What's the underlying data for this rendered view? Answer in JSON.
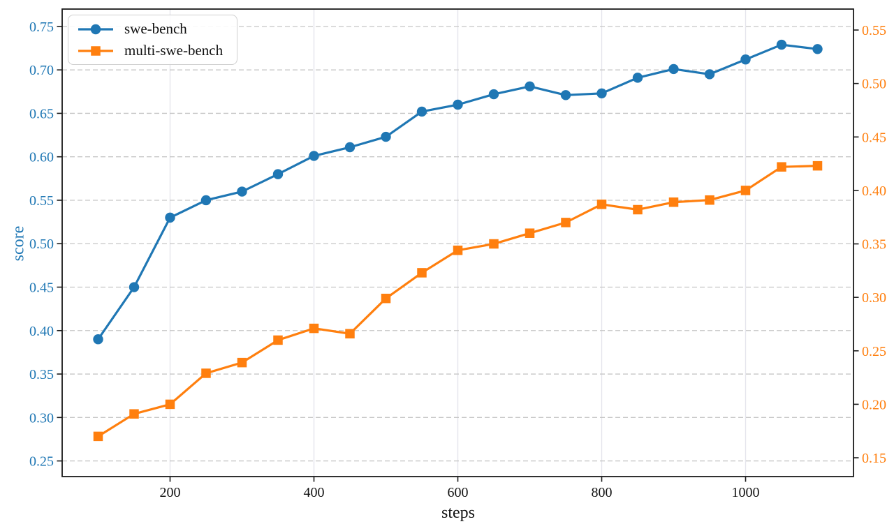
{
  "chart_data": {
    "type": "line",
    "title": "",
    "xlabel": "steps",
    "ylabel": "score",
    "x": [
      100,
      150,
      200,
      250,
      300,
      350,
      400,
      450,
      500,
      550,
      600,
      650,
      700,
      750,
      800,
      850,
      900,
      950,
      1000,
      1050,
      1100
    ],
    "series": [
      {
        "name": "swe-bench",
        "axis": "left",
        "color": "#1f77b4",
        "marker": "circle",
        "values": [
          0.39,
          0.45,
          0.53,
          0.55,
          0.56,
          0.58,
          0.601,
          0.611,
          0.623,
          0.652,
          0.66,
          0.672,
          0.681,
          0.671,
          0.673,
          0.691,
          0.701,
          0.695,
          0.712,
          0.729,
          0.724
        ]
      },
      {
        "name": "multi-swe-bench",
        "axis": "right",
        "color": "#ff7f0e",
        "marker": "square",
        "values": [
          0.17,
          0.191,
          0.2,
          0.229,
          0.239,
          0.26,
          0.271,
          0.266,
          0.299,
          0.323,
          0.344,
          0.35,
          0.36,
          0.37,
          0.387,
          0.382,
          0.389,
          0.391,
          0.4,
          0.422,
          0.423
        ]
      }
    ],
    "axes": {
      "x": {
        "range": [
          50,
          1150
        ],
        "tick_values": [
          200,
          400,
          600,
          800,
          1000
        ],
        "tick_labels": [
          "200",
          "400",
          "600",
          "800",
          "1000"
        ],
        "label_color": "#111111"
      },
      "left": {
        "range": [
          0.232,
          0.77
        ],
        "tick_values": [
          0.25,
          0.3,
          0.35,
          0.4,
          0.45,
          0.5,
          0.55,
          0.6,
          0.65,
          0.7,
          0.75
        ],
        "tick_labels": [
          "0.25",
          "0.30",
          "0.35",
          "0.40",
          "0.45",
          "0.50",
          "0.55",
          "0.60",
          "0.65",
          "0.70",
          "0.75"
        ],
        "label_color": "#1f77b4"
      },
      "right": {
        "range": [
          0.1324,
          0.5696
        ],
        "tick_values": [
          0.15,
          0.2,
          0.25,
          0.3,
          0.35,
          0.4,
          0.45,
          0.5,
          0.55
        ],
        "tick_labels": [
          "0.15",
          "0.20",
          "0.25",
          "0.30",
          "0.35",
          "0.40",
          "0.45",
          "0.50",
          "0.55"
        ],
        "label_color": "#ff7f0e"
      }
    },
    "legend": {
      "position": "upper-left",
      "items": [
        "swe-bench",
        "multi-swe-bench"
      ]
    },
    "grid": {
      "horizontal": "dashed",
      "vertical": "solid"
    },
    "colors": {
      "horizontal_grid": "#c6c6c6",
      "vertical_grid": "#e4e4ec",
      "spine": "#1a1a1a"
    }
  }
}
